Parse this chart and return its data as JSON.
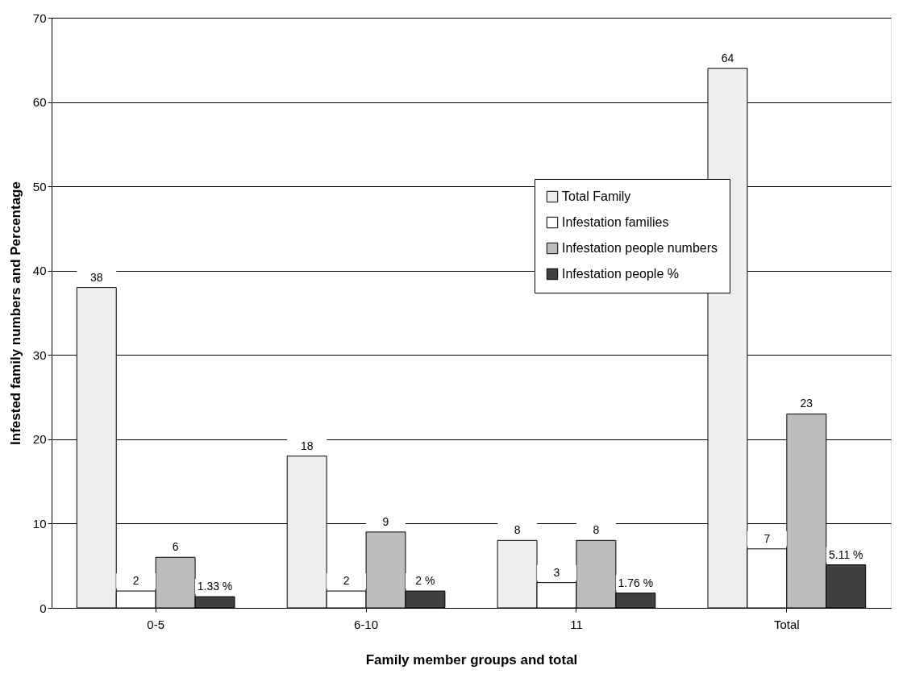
{
  "chart_data": {
    "type": "bar",
    "xlabel": "Family member groups and total",
    "ylabel": "Infested family numbers and Percentage",
    "categories": [
      "0-5",
      "6-10",
      "11",
      "Total"
    ],
    "series": [
      {
        "name": "Total Family",
        "color": "#eeeeee",
        "values": [
          38,
          18,
          8,
          64
        ],
        "value_labels": [
          "38",
          "18",
          "8",
          "64"
        ]
      },
      {
        "name": "Infestation families",
        "color": "#ffffff",
        "values": [
          2,
          2,
          3,
          7
        ],
        "value_labels": [
          "2",
          "2",
          "3",
          "7"
        ]
      },
      {
        "name": "Infestation people numbers",
        "color": "#bdbdbd",
        "values": [
          6,
          9,
          8,
          23
        ],
        "value_labels": [
          "6",
          "9",
          "8",
          "23"
        ]
      },
      {
        "name": "Infestation people %",
        "color": "#404040",
        "values": [
          1.33,
          2,
          1.76,
          5.11
        ],
        "value_labels": [
          "1.33 %",
          "2 %",
          "1.76 %",
          "5.11 %"
        ]
      }
    ],
    "ylim": [
      0,
      70
    ],
    "yticks": [
      0,
      10,
      20,
      30,
      40,
      50,
      60,
      70
    ],
    "grid": "y",
    "legend": "top right"
  }
}
